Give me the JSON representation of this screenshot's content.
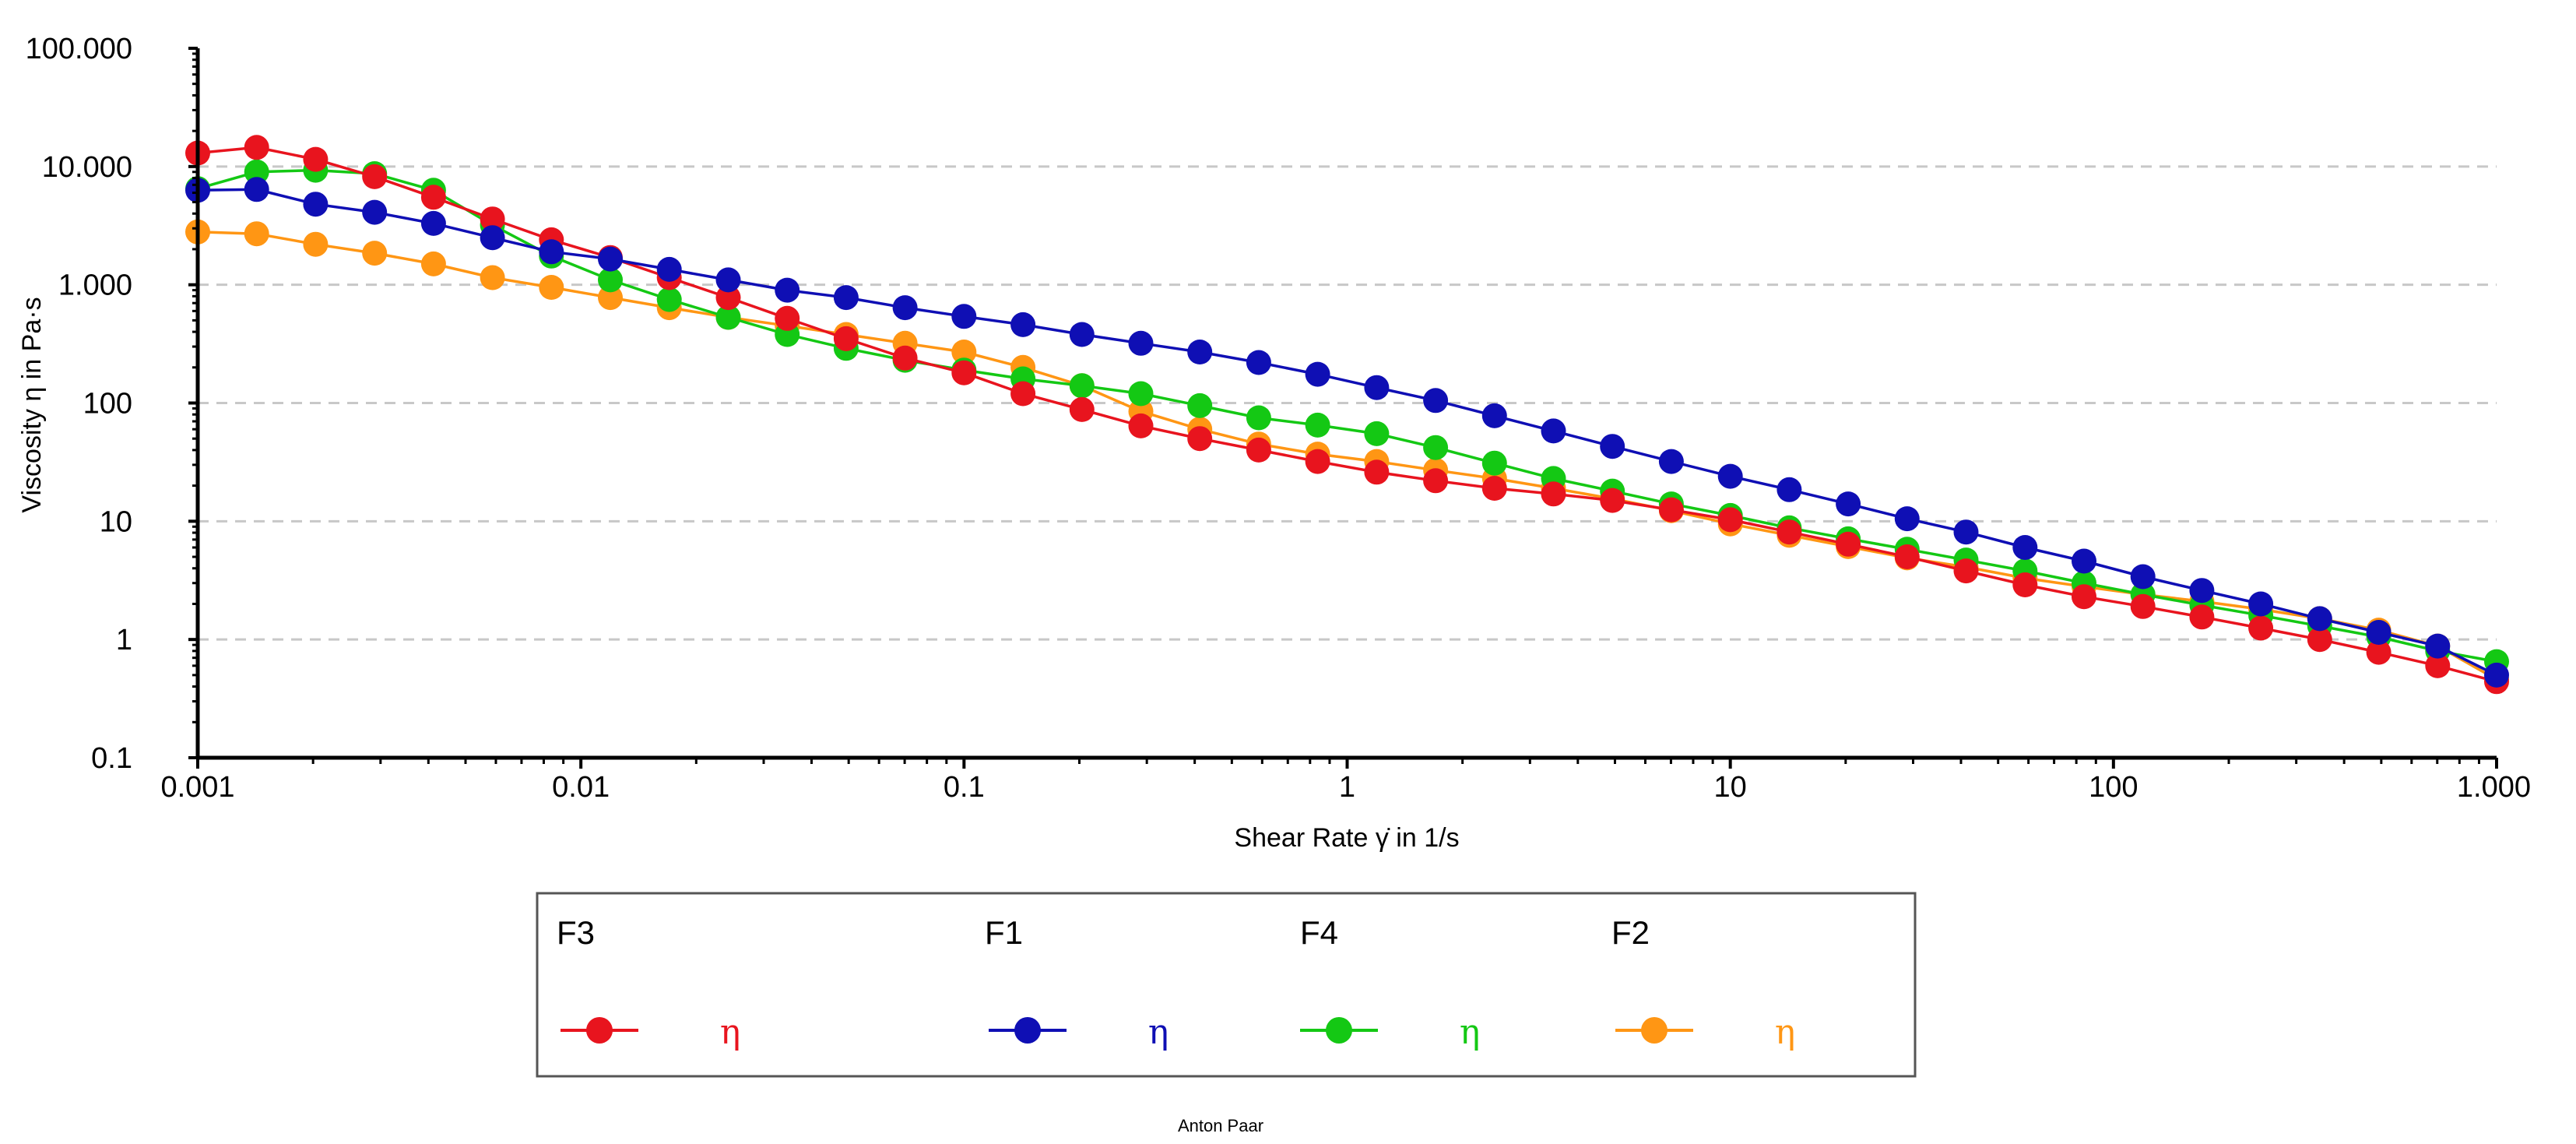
{
  "chart_data": {
    "type": "line",
    "xscale": "log",
    "yscale": "log",
    "xlim": [
      0.001,
      1000
    ],
    "ylim": [
      0.1,
      100000
    ],
    "xlabel": "Shear Rate γ̇ in 1/s",
    "ylabel": "Viscosity η in Pa·s",
    "x_ticks": [
      {
        "value": 0.001,
        "label": "0.001"
      },
      {
        "value": 0.01,
        "label": "0.01"
      },
      {
        "value": 0.1,
        "label": "0.1"
      },
      {
        "value": 1,
        "label": "1"
      },
      {
        "value": 10,
        "label": "10"
      },
      {
        "value": 100,
        "label": "100"
      },
      {
        "value": 1000,
        "label": "1.000"
      }
    ],
    "y_ticks": [
      {
        "value": 0.1,
        "label": "0.1"
      },
      {
        "value": 1,
        "label": "1"
      },
      {
        "value": 10,
        "label": "10"
      },
      {
        "value": 100,
        "label": "100"
      },
      {
        "value": 1000,
        "label": "1.000"
      },
      {
        "value": 10000,
        "label": "10.000"
      },
      {
        "value": 100000,
        "label": "100.000"
      }
    ],
    "grid": "horizontal-dashed",
    "legend_position": "bottom-center",
    "footer": "Anton Paar",
    "series": [
      {
        "name": "F3",
        "symbol": "η",
        "color": "#e8141e",
        "y": [
          13000,
          14500,
          11500,
          8200,
          5500,
          3600,
          2400,
          1700,
          1150,
          780,
          520,
          350,
          240,
          180,
          120,
          88,
          64,
          50,
          40,
          32,
          26,
          22,
          19,
          17,
          15,
          12.5,
          10.3,
          8.1,
          6.4,
          5.0,
          3.8,
          2.9,
          2.3,
          1.9,
          1.55,
          1.25,
          1.0,
          0.78,
          0.6,
          0.44
        ]
      },
      {
        "name": "F1",
        "symbol": "η",
        "color": "#0f0fb4",
        "y": [
          6300,
          6400,
          4800,
          4100,
          3300,
          2500,
          1900,
          1650,
          1350,
          1100,
          900,
          780,
          640,
          540,
          460,
          380,
          320,
          270,
          220,
          175,
          135,
          105,
          78,
          58,
          43,
          32,
          24,
          18.5,
          14,
          10.5,
          8.1,
          6.0,
          4.6,
          3.4,
          2.6,
          2.0,
          1.5,
          1.15,
          0.88,
          0.5
        ]
      },
      {
        "name": "F4",
        "symbol": "η",
        "color": "#14c814",
        "y": [
          6500,
          9000,
          9300,
          8700,
          6300,
          3200,
          1750,
          1100,
          750,
          530,
          380,
          290,
          230,
          190,
          160,
          140,
          120,
          95,
          75,
          65,
          55,
          42,
          31,
          23,
          18,
          14,
          11.2,
          8.8,
          7.1,
          5.8,
          4.7,
          3.8,
          3.0,
          2.4,
          1.95,
          1.6,
          1.3,
          1.05,
          0.8,
          0.65
        ]
      },
      {
        "name": "F2",
        "symbol": "η",
        "color": "#ff9614",
        "y": [
          2800,
          2700,
          2200,
          1850,
          1500,
          1150,
          950,
          780,
          640,
          530,
          450,
          380,
          320,
          270,
          200,
          140,
          85,
          60,
          45,
          37,
          32,
          27,
          23,
          19,
          15.5,
          12.3,
          9.5,
          7.6,
          6.1,
          4.9,
          4.1,
          3.3,
          2.8,
          2.4,
          2.1,
          1.8,
          1.5,
          1.2,
          0.88,
          0.46
        ]
      }
    ]
  }
}
